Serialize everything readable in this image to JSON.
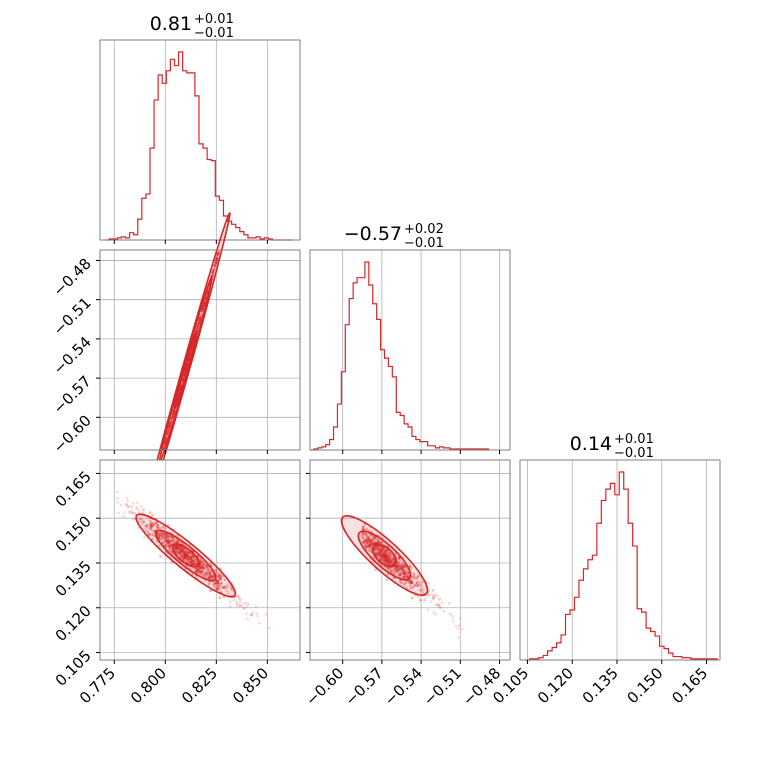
{
  "chart_data": {
    "type": "corner",
    "color": "#d62728",
    "grid": true,
    "parameters": [
      {
        "title": {
          "value": "0.81",
          "upper": "+0.01",
          "lower": "−0.01"
        },
        "range": [
          0.768,
          0.866
        ],
        "ticks": [
          0.775,
          0.8,
          0.825,
          0.85
        ],
        "tick_labels": [
          "0.775",
          "0.800",
          "0.825",
          "0.850"
        ],
        "hist_centers": [
          0.7715,
          0.7735,
          0.7755,
          0.7775,
          0.7795,
          0.7815,
          0.7835,
          0.7855,
          0.7875,
          0.7895,
          0.7915,
          0.7935,
          0.7955,
          0.7975,
          0.7995,
          0.8015,
          0.8035,
          0.8055,
          0.8075,
          0.8095,
          0.8115,
          0.8135,
          0.8155,
          0.8175,
          0.8195,
          0.8215,
          0.8235,
          0.8255,
          0.8275,
          0.8295,
          0.8315,
          0.8335,
          0.8355,
          0.8375,
          0.8395,
          0.8415,
          0.8435,
          0.8455,
          0.8475,
          0.8495,
          0.8515,
          0.8535,
          0.8555,
          0.8575,
          0.8595,
          0.8615
        ],
        "hist_counts": [
          0,
          1,
          1,
          2,
          3,
          2,
          7,
          5,
          20,
          40,
          44,
          88,
          134,
          158,
          150,
          162,
          173,
          167,
          180,
          162,
          160,
          160,
          138,
          92,
          88,
          77,
          76,
          42,
          38,
          23,
          18,
          15,
          12,
          8,
          5,
          2,
          2,
          3,
          1,
          2,
          1,
          0,
          0,
          0,
          0,
          0
        ]
      },
      {
        "title": {
          "value": "−0.57",
          "upper": "+0.02",
          "lower": "−0.01"
        },
        "range": [
          -0.625,
          -0.472
        ],
        "ticks": [
          -0.6,
          -0.57,
          -0.54,
          -0.51,
          -0.48
        ],
        "tick_labels": [
          "−0.60",
          "−0.57",
          "−0.54",
          "−0.51",
          "−0.48"
        ],
        "hist_centers": [
          -0.6235,
          -0.6205,
          -0.6175,
          -0.6145,
          -0.6115,
          -0.6085,
          -0.6055,
          -0.6025,
          -0.5995,
          -0.5965,
          -0.5935,
          -0.5905,
          -0.5875,
          -0.5845,
          -0.5815,
          -0.5785,
          -0.5755,
          -0.5725,
          -0.5695,
          -0.5665,
          -0.5635,
          -0.5605,
          -0.5575,
          -0.5545,
          -0.5515,
          -0.5485,
          -0.5455,
          -0.5425,
          -0.5395,
          -0.5365,
          -0.5335,
          -0.5305,
          -0.5275,
          -0.5245,
          -0.5215,
          -0.5195,
          -0.5165,
          -0.5135,
          -0.5105,
          -0.5075,
          -0.5045,
          -0.5015,
          -0.4985,
          -0.4955,
          -0.4925,
          -0.4895
        ],
        "hist_counts": [
          0,
          1,
          2,
          3,
          5,
          10,
          22,
          44,
          75,
          120,
          145,
          160,
          165,
          165,
          180,
          158,
          140,
          125,
          96,
          88,
          80,
          70,
          36,
          33,
          25,
          22,
          13,
          10,
          8,
          8,
          4,
          4,
          2,
          3,
          2,
          2,
          1,
          1,
          1,
          1,
          1,
          1,
          1,
          1,
          1,
          1
        ]
      },
      {
        "title": {
          "value": "0.14",
          "upper": "+0.01",
          "lower": "−0.01"
        },
        "range": [
          0.1025,
          0.1695
        ],
        "ticks": [
          0.105,
          0.12,
          0.135,
          0.15,
          0.165
        ],
        "tick_labels": [
          "0.105",
          "0.120",
          "0.135",
          "0.150",
          "0.165"
        ],
        "hist_centers": [
          0.105,
          0.1065,
          0.108,
          0.1095,
          0.111,
          0.1125,
          0.114,
          0.1155,
          0.117,
          0.1185,
          0.12,
          0.1215,
          0.123,
          0.1245,
          0.126,
          0.1275,
          0.129,
          0.1305,
          0.132,
          0.1335,
          0.135,
          0.1365,
          0.138,
          0.1395,
          0.141,
          0.1425,
          0.144,
          0.1455,
          0.147,
          0.1485,
          0.15,
          0.1515,
          0.153,
          0.1545,
          0.156,
          0.1575,
          0.159,
          0.1605,
          0.162,
          0.1635,
          0.165,
          0.1665,
          0.168
        ],
        "hist_counts": [
          0,
          1,
          1,
          2,
          4,
          8,
          11,
          15,
          22,
          40,
          44,
          55,
          70,
          80,
          88,
          92,
          120,
          140,
          150,
          155,
          145,
          165,
          150,
          120,
          100,
          45,
          42,
          28,
          25,
          21,
          12,
          10,
          6,
          3,
          3,
          2,
          2,
          1,
          1,
          1,
          1,
          1,
          1
        ]
      }
    ],
    "pairs": [
      {
        "x_param": 0,
        "y_param": 1,
        "relation": {
          "slope": 5.55,
          "ref_x": 0.81,
          "ref_y": -0.5635
        },
        "x_spread": 0.0108,
        "y_scatter": 0.0008,
        "sample_x_range": [
          0.776,
          0.857
        ],
        "contour_levels": [
          0.5,
          1.2,
          2.0
        ]
      },
      {
        "x_param": 0,
        "y_param": 2,
        "relation": {
          "slope": -0.56,
          "ref_x": 0.81,
          "ref_y": 0.1375
        },
        "x_spread": 0.012,
        "y_scatter": 0.0012,
        "sample_x_range": [
          0.776,
          0.857
        ],
        "contour_levels": [
          0.5,
          1.2,
          2.0
        ]
      },
      {
        "x_param": 1,
        "y_param": 2,
        "relation": {
          "slope": -0.4,
          "ref_x": -0.568,
          "ref_y": 0.1375
        },
        "x_spread": 0.016,
        "y_scatter": 0.0014,
        "sample_x_range": [
          -0.585,
          -0.5
        ],
        "contour_levels": [
          0.5,
          1.2,
          2.0
        ]
      }
    ]
  }
}
